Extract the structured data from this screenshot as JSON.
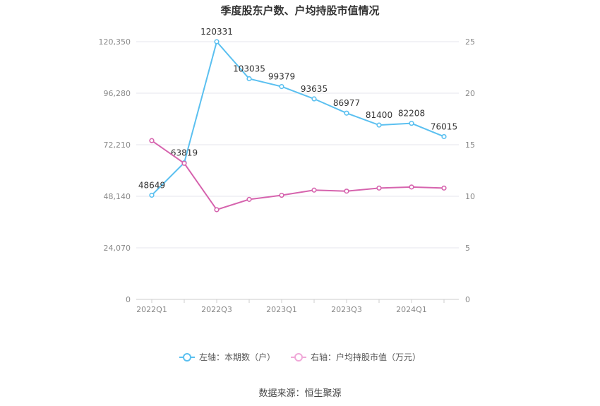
{
  "chart_data": {
    "type": "line",
    "title": "季度股东户数、户均持股市值情况",
    "categories": [
      "2022Q1",
      "2022Q2",
      "2022Q3",
      "2022Q4",
      "2023Q1",
      "2023Q2",
      "2023Q3",
      "2023Q4",
      "2024Q1",
      "2024Q2"
    ],
    "x_tick_labels": [
      "2022Q1",
      "2022Q3",
      "2023Q1",
      "2023Q3",
      "2024Q1"
    ],
    "y_left": {
      "ticks": [
        "0",
        "24,070",
        "48,140",
        "72,210",
        "96,280",
        "120,350"
      ],
      "ylim": [
        0,
        120350
      ]
    },
    "y_right": {
      "ticks": [
        "0",
        "5",
        "10",
        "15",
        "20",
        "25"
      ],
      "ylim": [
        0,
        25
      ]
    },
    "series": [
      {
        "name": "左轴：本期数（户）",
        "axis": "left",
        "color": "#5bc0f0",
        "values": [
          48649,
          63819,
          120331,
          103035,
          99379,
          93635,
          86977,
          81400,
          82208,
          76015
        ],
        "labels": [
          "48649",
          "63819",
          "120331",
          "103035",
          "99379",
          "93635",
          "86977",
          "81400",
          "82208",
          "76015"
        ]
      },
      {
        "name": "右轴：户均持股市值（万元）",
        "axis": "right",
        "color": "#d664ae",
        "values": [
          15.4,
          13.2,
          8.7,
          9.7,
          10.1,
          10.6,
          10.5,
          10.8,
          10.9,
          10.8
        ]
      }
    ],
    "grid": true,
    "legend_position": "bottom"
  },
  "source_text": "数据来源：恒生聚源"
}
